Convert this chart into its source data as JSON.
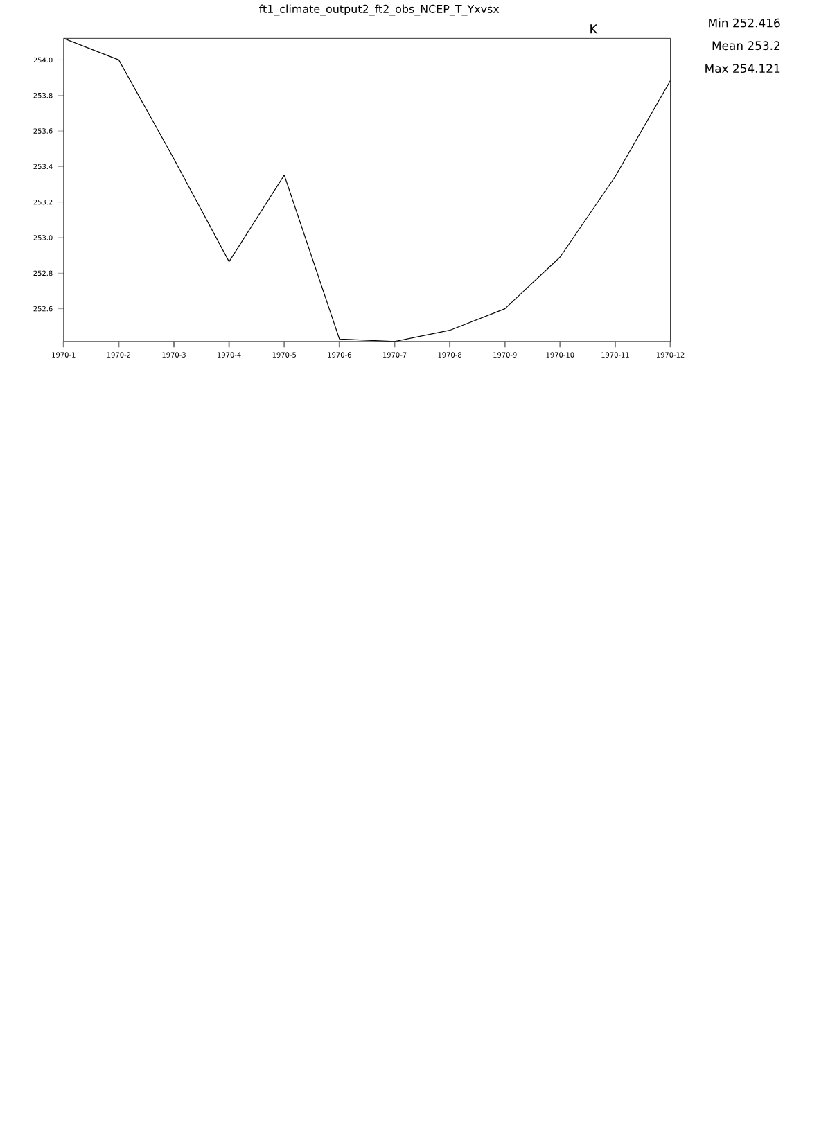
{
  "chart_data": {
    "type": "line",
    "title": "ft1_climate_output2_ft2_obs_NCEP_T_Yxvsx",
    "ylabel": "K",
    "categories": [
      "1970-1",
      "1970-2",
      "1970-3",
      "1970-4",
      "1970-5",
      "1970-6",
      "1970-7",
      "1970-8",
      "1970-9",
      "1970-10",
      "1970-11",
      "1970-12"
    ],
    "series": [
      {
        "color": "#000000",
        "values": [
          254.121,
          254.0,
          253.443,
          252.865,
          253.352,
          252.43,
          252.416,
          252.479,
          252.6,
          252.891,
          253.344,
          253.883
        ]
      }
    ],
    "ylim": [
      252.416,
      254.121
    ],
    "yticks": [
      252.6,
      252.8,
      {
        "value": 253,
        "label": "253.0"
      },
      253.2,
      253.4,
      253.6,
      253.8,
      {
        "value": 254,
        "label": "254.0"
      }
    ],
    "annotations": [
      "Min 252.416",
      "Mean 253.2",
      "Max 254.121"
    ],
    "grid": false,
    "legend": false,
    "marker": "none",
    "line_style": "solid"
  }
}
